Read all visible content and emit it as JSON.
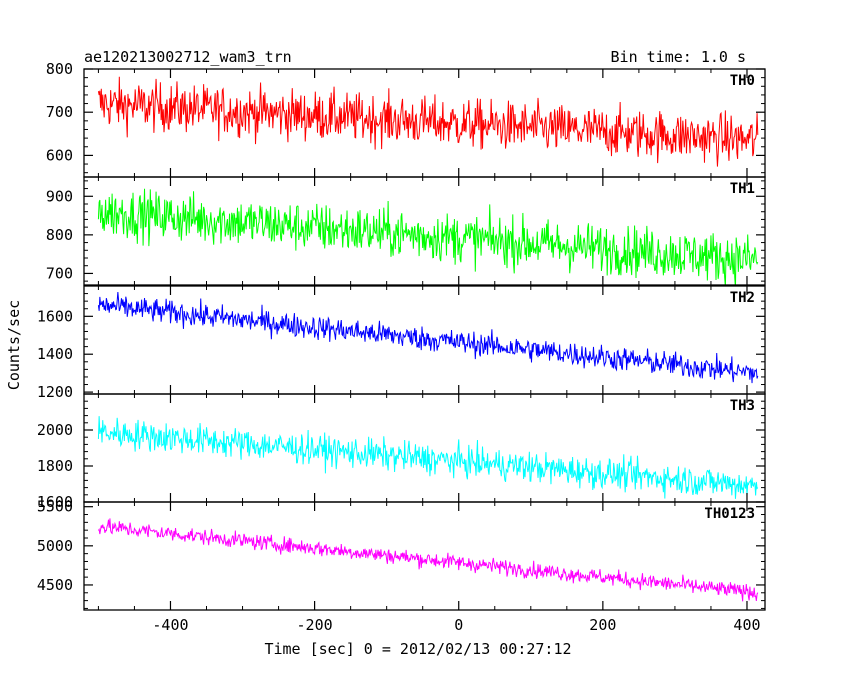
{
  "header": {
    "title": "ae120213002712_wam3_trn",
    "bin_time": "Bin time: 1.0 s"
  },
  "axes": {
    "xlabel": "Time [sec] 0 = 2012/02/13 00:27:12",
    "ylabel": "Counts/sec",
    "xlim": [
      -520,
      425
    ],
    "xticks": [
      -400,
      -200,
      0,
      200,
      400
    ]
  },
  "chart_data": {
    "type": "line",
    "x_range": [
      -500,
      415
    ],
    "bin_seconds": 1.0,
    "panels": [
      {
        "name": "TH0",
        "color": "#ff0000",
        "ylim": [
          550,
          800
        ],
        "yticks": [
          600,
          700,
          800
        ],
        "trend_start": 720,
        "trend_end": 635,
        "noise": 40
      },
      {
        "name": "TH1",
        "color": "#00ff00",
        "ylim": [
          670,
          950
        ],
        "yticks": [
          700,
          800,
          900
        ],
        "trend_start": 860,
        "trend_end": 735,
        "noise": 45
      },
      {
        "name": "TH2",
        "color": "#0000ff",
        "ylim": [
          1190,
          1760
        ],
        "yticks": [
          1200,
          1400,
          1600
        ],
        "trend_start": 1660,
        "trend_end": 1300,
        "noise": 45
      },
      {
        "name": "TH3",
        "color": "#00ffff",
        "ylim": [
          1600,
          2200
        ],
        "yticks": [
          1600,
          1800,
          2000
        ],
        "trend_start": 1990,
        "trend_end": 1690,
        "noise": 60
      },
      {
        "name": "TH0123",
        "color": "#ff00ff",
        "ylim": [
          4180,
          5560
        ],
        "yticks": [
          4500,
          5000,
          5500
        ],
        "trend_start": 5250,
        "trend_end": 4400,
        "noise": 70
      }
    ]
  }
}
